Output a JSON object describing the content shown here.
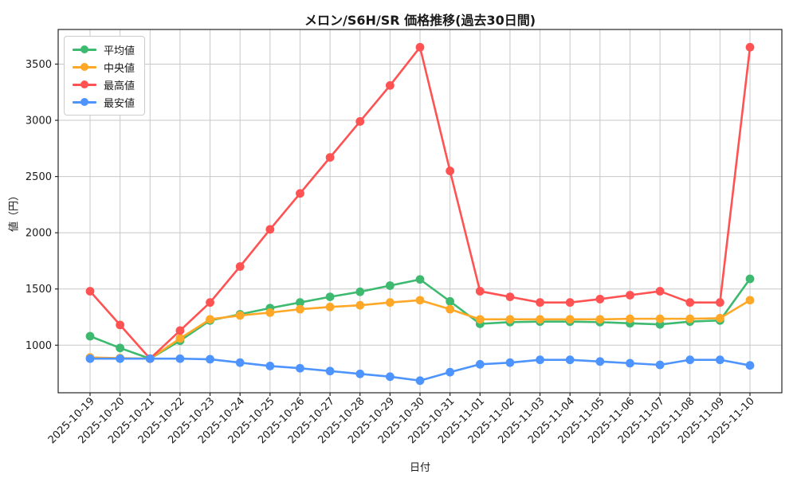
{
  "title": "メロン/S6H/SR 価格推移(過去30日間)",
  "axes": {
    "xlabel": "日付",
    "ylabel": "値（円）"
  },
  "legend": {
    "entries": [
      "平均値",
      "中央値",
      "最高値",
      "最安値"
    ]
  },
  "colors": {
    "average": "#3dba6f",
    "median": "#ffa726",
    "max": "#ff5252",
    "min": "#4d94ff",
    "grid": "#c8c8c8",
    "axis_border": "#262626",
    "text": "#1a1a1a"
  },
  "chart_data": {
    "type": "line",
    "title": "メロン/S6H/SR 価格推移(過去30日間)",
    "xlabel": "日付",
    "ylabel": "値（円）",
    "grid": true,
    "legend_position": "upper-left",
    "x_tick_rotation": 45,
    "yticks": [
      1000,
      1500,
      2000,
      2500,
      3000,
      3500
    ],
    "ylim": [
      577,
      3808
    ],
    "categories": [
      "2025-10-19",
      "2025-10-20",
      "2025-10-21",
      "2025-10-22",
      "2025-10-23",
      "2025-10-24",
      "2025-10-25",
      "2025-10-26",
      "2025-10-27",
      "2025-10-28",
      "2025-10-29",
      "2025-10-30",
      "2025-10-31",
      "2025-11-01",
      "2025-11-02",
      "2025-11-03",
      "2025-11-04",
      "2025-11-05",
      "2025-11-06",
      "2025-11-07",
      "2025-11-08",
      "2025-11-09",
      "2025-11-10"
    ],
    "series": [
      {
        "key": "average",
        "name": "平均値",
        "color": "#3dba6f",
        "values": [
          1080,
          975,
          880,
          1040,
          1220,
          1275,
          1330,
          1380,
          1430,
          1475,
          1530,
          1585,
          1390,
          1190,
          1205,
          1210,
          1210,
          1205,
          1195,
          1185,
          1210,
          1220,
          1590
        ]
      },
      {
        "key": "median",
        "name": "中央値",
        "color": "#ffa726",
        "values": [
          890,
          885,
          880,
          1060,
          1230,
          1265,
          1290,
          1320,
          1340,
          1355,
          1380,
          1400,
          1320,
          1230,
          1230,
          1230,
          1230,
          1230,
          1235,
          1235,
          1235,
          1240,
          1400
        ]
      },
      {
        "key": "max",
        "name": "最高値",
        "color": "#ff5252",
        "values": [
          1480,
          1180,
          880,
          1130,
          1380,
          1700,
          2030,
          2350,
          2670,
          2990,
          3310,
          3650,
          2550,
          1480,
          1430,
          1380,
          1380,
          1410,
          1445,
          1480,
          1380,
          1380,
          3650
        ]
      },
      {
        "key": "min",
        "name": "最安値",
        "color": "#4d94ff",
        "values": [
          880,
          880,
          880,
          880,
          875,
          845,
          815,
          795,
          770,
          745,
          720,
          685,
          760,
          830,
          845,
          870,
          870,
          855,
          840,
          825,
          870,
          870,
          820
        ]
      }
    ]
  }
}
